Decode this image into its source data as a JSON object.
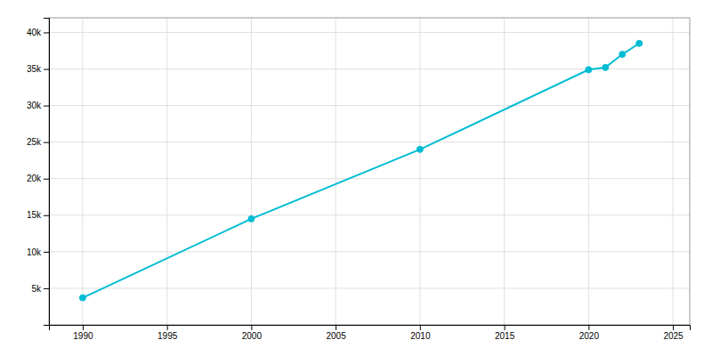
{
  "chart_data": {
    "type": "line",
    "x": [
      1990,
      2000,
      2010,
      2020,
      2021,
      2022,
      2023
    ],
    "values": [
      3700,
      14500,
      24000,
      34900,
      35200,
      37000,
      38500
    ],
    "color": "#00BCD4",
    "marker": "circle",
    "xlim": [
      1988,
      2026
    ],
    "xticks": [
      1990,
      1995,
      2000,
      2005,
      2010,
      2015,
      2020,
      2025
    ],
    "ylim": [
      0,
      42000
    ],
    "yticks": [
      {
        "value": 5000,
        "label": "5k"
      },
      {
        "value": 10000,
        "label": "10k"
      },
      {
        "value": 15000,
        "label": "15k"
      },
      {
        "value": 20000,
        "label": "20k"
      },
      {
        "value": 25000,
        "label": "25k"
      },
      {
        "value": 30000,
        "label": "30k"
      },
      {
        "value": 35000,
        "label": "35k"
      },
      {
        "value": 40000,
        "label": "40k"
      }
    ],
    "grid": true
  }
}
